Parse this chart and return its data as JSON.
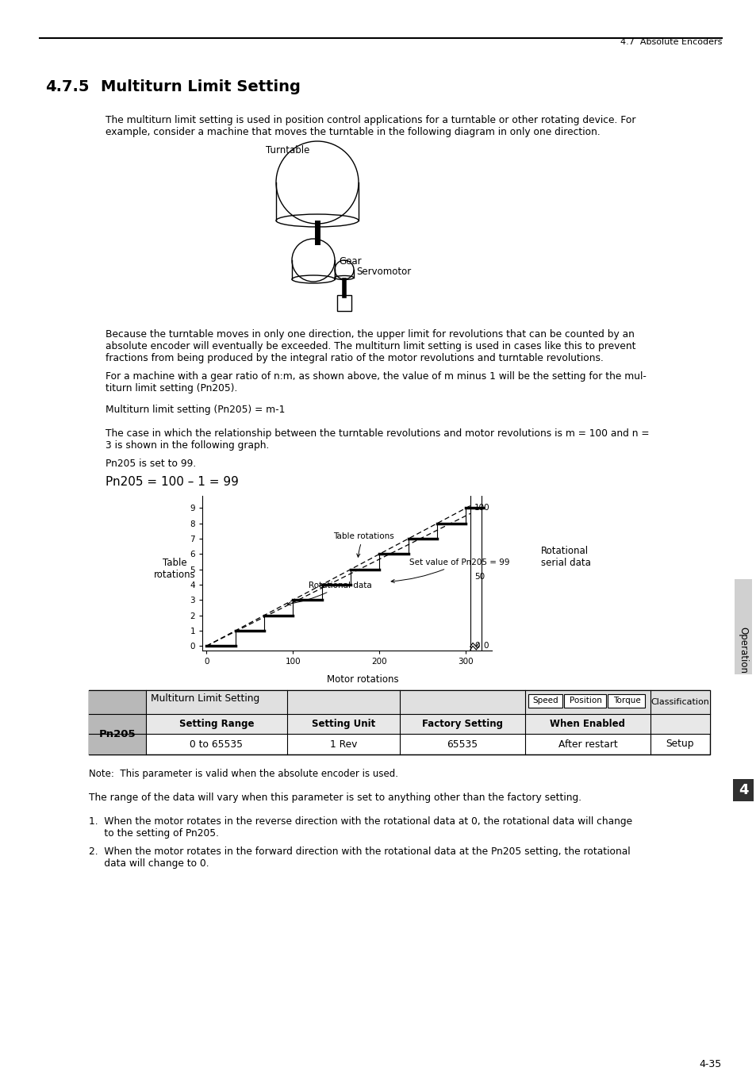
{
  "page_header_right": "4.7  Absolute Encoders",
  "page_footer": "4-35",
  "section_number": "4.7.5",
  "section_title": "Multiturn Limit Setting",
  "para1a": "The multiturn limit setting is used in position control applications for a turntable or other rotating device. For",
  "para1b": "example, consider a machine that moves the turntable in the following diagram in only one direction.",
  "turntable_label": "Turntable",
  "gear_label": "Gear",
  "servomotor_label": "Servomotor",
  "para2a": "Because the turntable moves in only one direction, the upper limit for revolutions that can be counted by an",
  "para2b": "absolute encoder will eventually be exceeded. The multiturn limit setting is used in cases like this to prevent",
  "para2c": "fractions from being produced by the integral ratio of the motor revolutions and turntable revolutions.",
  "para3a": "For a machine with a gear ratio of n:m, as shown above, the value of m minus 1 will be the setting for the mul-",
  "para3b": "titurn limit setting (Pn205).",
  "para4": "Multiturn limit setting (Pn205) = m-1",
  "para5a": "The case in which the relationship between the turntable revolutions and motor revolutions is m = 100 and n =",
  "para5b": "3 is shown in the following graph.",
  "para6": "Pn205 is set to 99.",
  "para7": "Pn205 = 100 – 1 = 99",
  "graph_ylabel_left": "Table\nrotations",
  "graph_ylabel_right": "Rotational\nserial data",
  "graph_xlabel": "Motor rotations",
  "graph_annotation1": "Table rotations",
  "graph_annotation2": "Rotational data",
  "graph_annotation3": "Set value of Pn205 = 99",
  "table_param": "Pn205",
  "table_title": "Multiturn Limit Setting",
  "table_speed_btn": "Speed",
  "table_position_btn": "Position",
  "table_torque_btn": "Torque",
  "table_classification": "Classification",
  "table_col1": "Setting Range",
  "table_col2": "Setting Unit",
  "table_col3": "Factory Setting",
  "table_col4": "When Enabled",
  "table_val1": "0 to 65535",
  "table_val2": "1 Rev",
  "table_val3": "65535",
  "table_val4": "After restart",
  "table_val5": "Setup",
  "note": "Note:  This parameter is valid when the absolute encoder is used.",
  "note2": "The range of the data will vary when this parameter is set to anything other than the factory setting.",
  "item1a": "1.  When the motor rotates in the reverse direction with the rotational data at 0, the rotational data will change",
  "item1b": "     to the setting of Pn205.",
  "item2a": "2.  When the motor rotates in the forward direction with the rotational data at the Pn205 setting, the rotational",
  "item2b": "     data will change to 0.",
  "sidebar_label": "Operation",
  "sidebar_number": "4"
}
